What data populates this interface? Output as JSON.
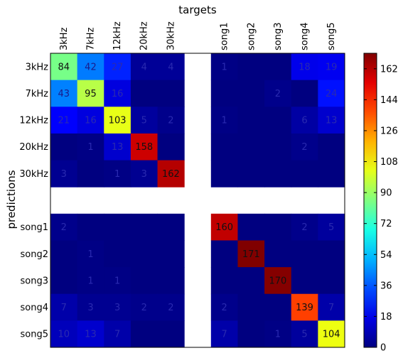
{
  "chart_data": {
    "type": "heatmap",
    "title": "targets",
    "xlabel": "",
    "ylabel": "predictions",
    "columns": [
      "3kHz",
      "7kHz",
      "12kHz",
      "20kHz",
      "30kHz",
      "",
      "song1",
      "song2",
      "song3",
      "song4",
      "song5"
    ],
    "rows": [
      "3kHz",
      "7kHz",
      "12kHz",
      "20kHz",
      "30kHz",
      "",
      "song1",
      "song2",
      "song3",
      "song4",
      "song5"
    ],
    "gap_index": 5,
    "values": [
      [
        84,
        42,
        27,
        4,
        4,
        null,
        1,
        0,
        0,
        18,
        19
      ],
      [
        43,
        95,
        16,
        0,
        0,
        null,
        0,
        0,
        2,
        0,
        24
      ],
      [
        21,
        16,
        103,
        5,
        2,
        null,
        1,
        0,
        0,
        6,
        13
      ],
      [
        0,
        1,
        13,
        158,
        0,
        null,
        0,
        0,
        0,
        2,
        0
      ],
      [
        3,
        0,
        1,
        3,
        162,
        null,
        0,
        0,
        0,
        0,
        0
      ],
      [
        null,
        null,
        null,
        null,
        null,
        null,
        null,
        null,
        null,
        null,
        null
      ],
      [
        2,
        0,
        0,
        0,
        0,
        null,
        160,
        0,
        0,
        2,
        5
      ],
      [
        0,
        1,
        0,
        0,
        0,
        null,
        0,
        171,
        0,
        0,
        0
      ],
      [
        0,
        1,
        1,
        0,
        0,
        null,
        0,
        0,
        170,
        0,
        0
      ],
      [
        7,
        3,
        3,
        2,
        2,
        null,
        2,
        0,
        0,
        139,
        7
      ],
      [
        10,
        13,
        7,
        0,
        0,
        null,
        7,
        0,
        1,
        5,
        104
      ]
    ],
    "colorbar": {
      "min": 0,
      "max": 171,
      "ticks": [
        0,
        18,
        36,
        54,
        72,
        90,
        108,
        126,
        144,
        162
      ],
      "colormap": "jet"
    },
    "grid": false,
    "legend": "colorbar-right"
  }
}
